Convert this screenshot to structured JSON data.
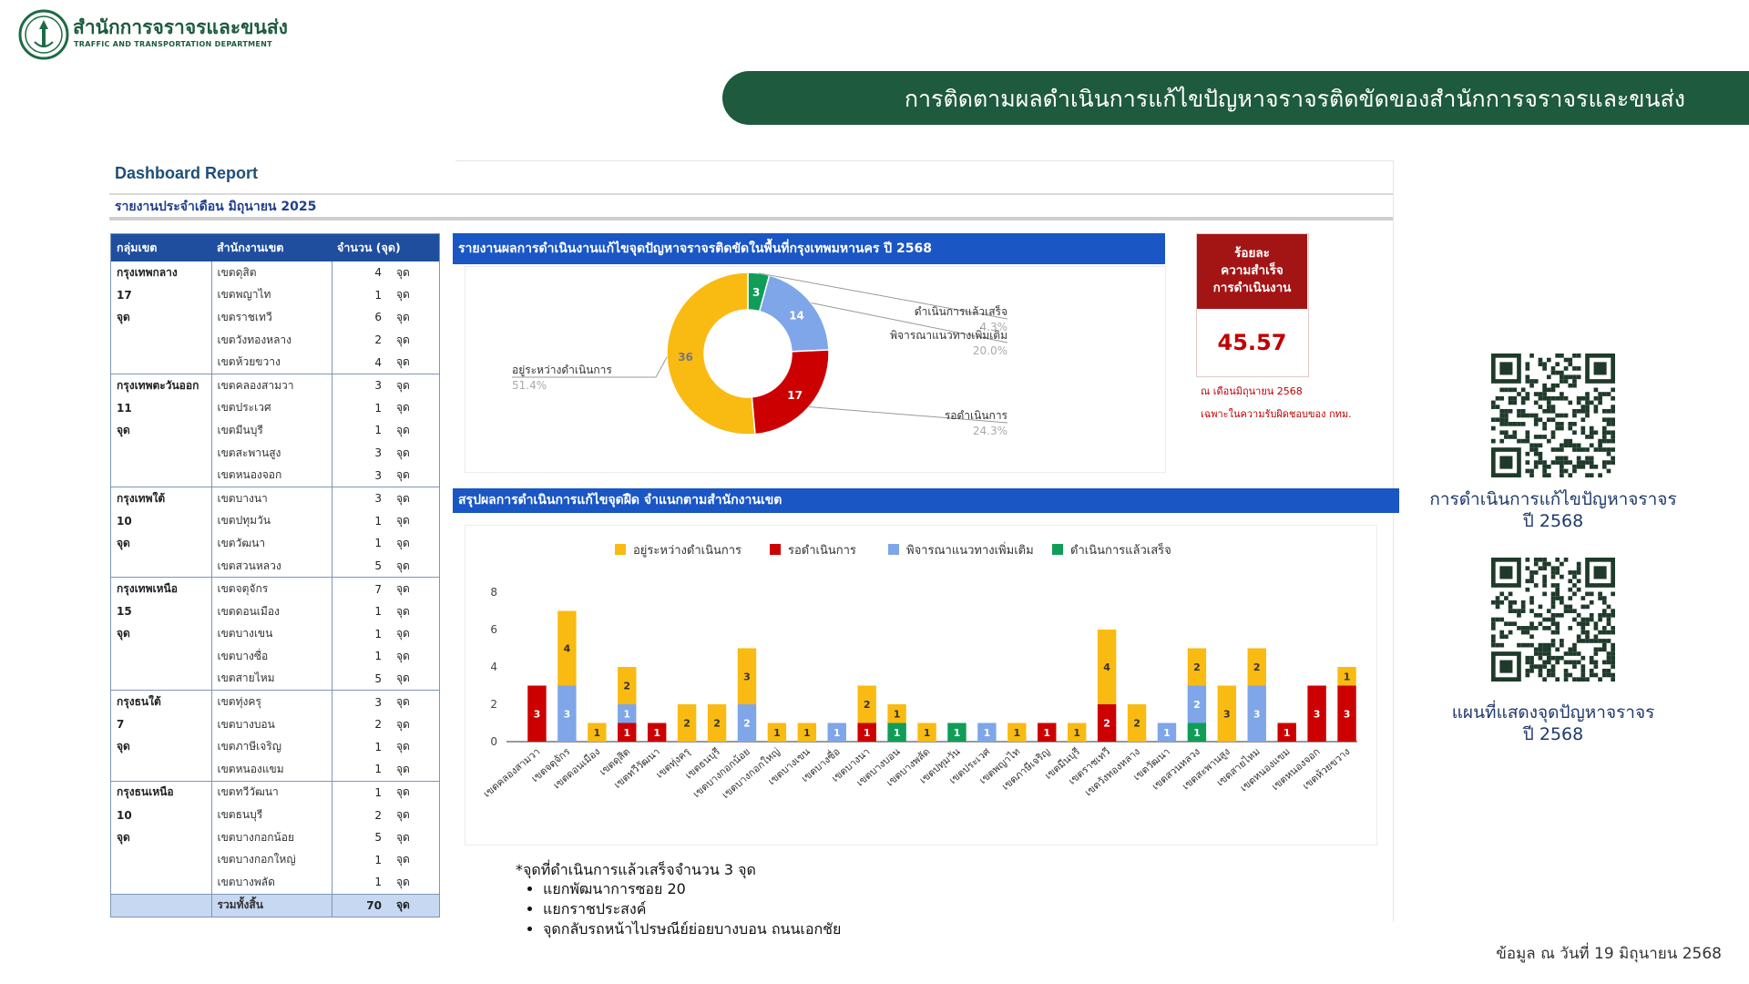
{
  "header": {
    "org_name_th": "สำนักการจราจรและขนส่ง",
    "org_name_en": "TRAFFIC AND TRANSPORTATION DEPARTMENT",
    "banner_title": "การติดตามผลดำเนินการแก้ไขปัญหาจราจรติดขัดของสำนักการจราจรและขนส่ง"
  },
  "dashboard": {
    "title": "Dashboard Report",
    "subtitle": "รายงานประจำเดือน  มิถุนายน 2025"
  },
  "table": {
    "headers": [
      "กลุ่มเขต",
      "สำนักงานเขต",
      "จำนวน (จุด)"
    ],
    "unit": "จุด",
    "groups": [
      {
        "name": "กรุงเทพกลาง",
        "count": "17",
        "unit": "จุด",
        "rows": [
          [
            "เขตดุสิต",
            "4"
          ],
          [
            "เขตพญาไท",
            "1"
          ],
          [
            "เขตราชเทวี",
            "6"
          ],
          [
            "เขตวังทองหลาง",
            "2"
          ],
          [
            "เขตห้วยขวาง",
            "4"
          ]
        ]
      },
      {
        "name": "กรุงเทพตะวันออก",
        "count": "11",
        "unit": "จุด",
        "rows": [
          [
            "เขตคลองสามวา",
            "3"
          ],
          [
            "เขตประเวศ",
            "1"
          ],
          [
            "เขตมีนบุรี",
            "1"
          ],
          [
            "เขตสะพานสูง",
            "3"
          ],
          [
            "เขตหนองจอก",
            "3"
          ]
        ]
      },
      {
        "name": "กรุงเทพใต้",
        "count": "10",
        "unit": "จุด",
        "rows": [
          [
            "เขตบางนา",
            "3"
          ],
          [
            "เขตปทุมวัน",
            "1"
          ],
          [
            "เขตวัฒนา",
            "1"
          ],
          [
            "เขตสวนหลวง",
            "5"
          ]
        ]
      },
      {
        "name": "กรุงเทพเหนือ",
        "count": "15",
        "unit": "จุด",
        "rows": [
          [
            "เขตจตุจักร",
            "7"
          ],
          [
            "เขตดอนเมือง",
            "1"
          ],
          [
            "เขตบางเขน",
            "1"
          ],
          [
            "เขตบางซื่อ",
            "1"
          ],
          [
            "เขตสายไหม",
            "5"
          ]
        ]
      },
      {
        "name": "กรุงธนใต้",
        "count": "7",
        "unit": "จุด",
        "rows": [
          [
            "เขตทุ่งครุ",
            "3"
          ],
          [
            "เขตบางบอน",
            "2"
          ],
          [
            "เขตภาษีเจริญ",
            "1"
          ],
          [
            "เขตหนองแขม",
            "1"
          ]
        ]
      },
      {
        "name": "กรุงธนเหนือ",
        "count": "10",
        "unit": "จุด",
        "rows": [
          [
            "เขตทวีวัฒนา",
            "1"
          ],
          [
            "เขตธนบุรี",
            "2"
          ],
          [
            "เขตบางกอกน้อย",
            "5"
          ],
          [
            "เขตบางกอกใหญ่",
            "1"
          ],
          [
            "เขตบางพลัด",
            "1"
          ]
        ]
      }
    ],
    "total_label": "รวมทั้งสิ้น",
    "total_value": "70",
    "total_unit": "จุด"
  },
  "donut": {
    "section_title": "รายงานผลการดำเนินงานแก้ไขจุดปัญหาจราจรติดขัดในพื้นที่กรุงเทพมหานคร ปี 2568"
  },
  "success": {
    "title_line1": "ร้อยละ",
    "title_line2": "ความสำเร็จ",
    "title_line3": "การดำเนินงาน",
    "value": "45.57",
    "note1": "ณ เดือนมิถุนายน 2568",
    "note2": "เฉพาะในความรับผิดชอบของ กทม."
  },
  "bar_section": {
    "title": "สรุปผลการดำเนินการแก้ไขจุดฝืด จำแนกตามสำนักงานเขต"
  },
  "chart_data": [
    {
      "type": "pie",
      "labels": [
        "ดำเนินการแล้วเสร็จ",
        "พิจารณาแนวทางเพิ่มเติม",
        "รอดำเนินการ",
        "อยู่ระหว่างดำเนินการ"
      ],
      "values": [
        3,
        14,
        17,
        36
      ],
      "percent_labels": [
        "4.3%",
        "20.0%",
        "24.3%",
        "51.4%"
      ],
      "colors": [
        "#0f9d58",
        "#7ea6e8",
        "#cc0000",
        "#f9bb12"
      ],
      "donut": true
    },
    {
      "type": "bar",
      "stacked": true,
      "categories": [
        "เขตคลองสามวา",
        "เขตจตุจักร",
        "เขตดอนเมือง",
        "เขตดุสิต",
        "เขตทวีวัฒนา",
        "เขตทุ่งครุ",
        "เขตธนบุรี",
        "เขตบางกอกน้อย",
        "เขตบางกอกใหญ่",
        "เขตบางเขน",
        "เขตบางซื่อ",
        "เขตบางนา",
        "เขตบางบอน",
        "เขตบางพลัด",
        "เขตปทุมวัน",
        "เขตประเวศ",
        "เขตพญาไท",
        "เขตภาษีเจริญ",
        "เขตมีนบุรี",
        "เขตราชเทวี",
        "เขตวังทองหลาง",
        "เขตวัฒนา",
        "เขตสวนหลวง",
        "เขตสะพานสูง",
        "เขตสายไหม",
        "เขตหนองแขม",
        "เขตหนองจอก",
        "เขตห้วยขวาง"
      ],
      "series": [
        {
          "name": "อยู่ระหว่างดำเนินการ",
          "color": "#f9bb12",
          "values": [
            0,
            4,
            1,
            2,
            0,
            2,
            2,
            3,
            1,
            1,
            0,
            2,
            1,
            1,
            0,
            0,
            1,
            0,
            1,
            4,
            2,
            0,
            2,
            3,
            2,
            0,
            0,
            1
          ]
        },
        {
          "name": "รอดำเนินการ",
          "color": "#cc0000",
          "values": [
            3,
            0,
            0,
            1,
            1,
            0,
            0,
            0,
            0,
            0,
            0,
            1,
            0,
            0,
            0,
            0,
            0,
            1,
            0,
            2,
            0,
            0,
            0,
            0,
            0,
            1,
            3,
            3
          ]
        },
        {
          "name": "พิจารณาแนวทางเพิ่มเติม",
          "color": "#7ea6e8",
          "values": [
            0,
            3,
            0,
            1,
            0,
            0,
            0,
            2,
            0,
            0,
            1,
            0,
            0,
            0,
            0,
            1,
            0,
            0,
            0,
            0,
            0,
            1,
            2,
            0,
            3,
            0,
            0,
            0
          ]
        },
        {
          "name": "ดำเนินการแล้วเสร็จ",
          "color": "#0f9d58",
          "values": [
            0,
            0,
            0,
            0,
            0,
            0,
            0,
            0,
            0,
            0,
            0,
            0,
            1,
            0,
            1,
            0,
            0,
            0,
            0,
            0,
            0,
            0,
            1,
            0,
            0,
            0,
            0,
            0
          ]
        }
      ],
      "ylim": [
        0,
        8
      ],
      "yticks": [
        0,
        2,
        4,
        6,
        8
      ],
      "legend": "top"
    }
  ],
  "qr": {
    "caption1_line1": "การดำเนินการแก้ไขปัญหาจราจร",
    "caption1_line2": "ปี 2568",
    "caption2_line1": "แผนที่แสดงจุดปัญหาจราจร",
    "caption2_line2": "ปี 2568"
  },
  "footnote": {
    "title": "*จุดที่ดำเนินการแล้วเสร็จจำนวน 3 จุด",
    "items": [
      "แยกพัฒนาการซอย 20",
      "แยกราชประสงค์",
      "จุดกลับรถหน้าไปรษณีย์ย่อยบางบอน ถนนเอกชัย"
    ]
  },
  "data_date": "ข้อมูล ณ วันที่ 19 มิถุนายน 2568"
}
